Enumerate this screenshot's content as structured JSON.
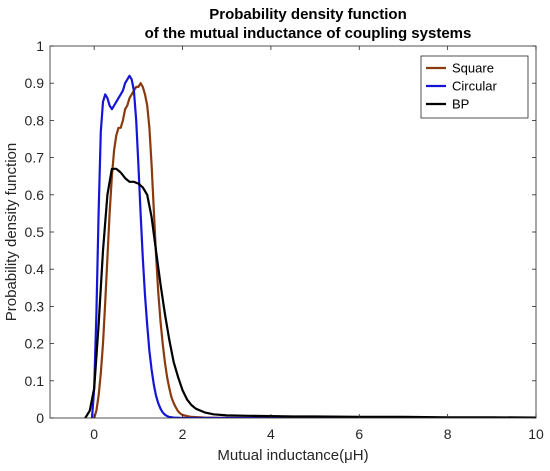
{
  "chart_data": {
    "type": "line",
    "title": [
      "Probability density function",
      "of the mutual inductance of coupling systems"
    ],
    "xlabel": "Mutual inductance(μH)",
    "ylabel": "Probability density function",
    "xlim": [
      -1,
      10
    ],
    "ylim": [
      0,
      1
    ],
    "xticks": [
      0,
      2,
      4,
      6,
      8,
      10
    ],
    "xtick_labels": [
      "0",
      "2",
      "4",
      "6",
      "8",
      "10"
    ],
    "yticks": [
      0,
      0.1,
      0.2,
      0.3,
      0.4,
      0.5,
      0.6,
      0.7,
      0.8,
      0.9,
      1
    ],
    "ytick_labels": [
      "0",
      "0.1",
      "0.2",
      "0.3",
      "0.4",
      "0.5",
      "0.6",
      "0.7",
      "0.8",
      "0.9",
      "1"
    ],
    "grid": false,
    "legend_position": "top-right",
    "series": [
      {
        "name": "Square",
        "color": "#8B3A0F",
        "x": [
          0.0,
          0.05,
          0.1,
          0.15,
          0.2,
          0.25,
          0.3,
          0.35,
          0.4,
          0.45,
          0.5,
          0.55,
          0.6,
          0.65,
          0.7,
          0.75,
          0.8,
          0.85,
          0.9,
          0.95,
          1.0,
          1.05,
          1.1,
          1.15,
          1.2,
          1.25,
          1.3,
          1.35,
          1.4,
          1.45,
          1.5,
          1.55,
          1.6,
          1.65,
          1.7,
          1.75,
          1.8,
          1.85,
          1.9,
          1.95,
          2.0,
          2.1,
          2.2,
          2.5,
          3.0,
          4.0,
          6.0,
          8.0,
          10.0
        ],
        "y": [
          0.0,
          0.02,
          0.06,
          0.12,
          0.2,
          0.31,
          0.43,
          0.55,
          0.65,
          0.72,
          0.76,
          0.78,
          0.78,
          0.8,
          0.83,
          0.84,
          0.86,
          0.87,
          0.88,
          0.89,
          0.89,
          0.9,
          0.89,
          0.87,
          0.84,
          0.78,
          0.68,
          0.56,
          0.44,
          0.34,
          0.26,
          0.2,
          0.15,
          0.11,
          0.08,
          0.055,
          0.04,
          0.028,
          0.018,
          0.012,
          0.008,
          0.005,
          0.003,
          0.001,
          0.0,
          0.0,
          0.0,
          0.0,
          0.0
        ]
      },
      {
        "name": "Circular",
        "color": "#1515D8",
        "x": [
          -0.05,
          0.0,
          0.05,
          0.1,
          0.15,
          0.2,
          0.25,
          0.3,
          0.35,
          0.4,
          0.45,
          0.5,
          0.55,
          0.6,
          0.65,
          0.7,
          0.75,
          0.8,
          0.85,
          0.9,
          0.95,
          1.0,
          1.05,
          1.1,
          1.15,
          1.2,
          1.25,
          1.3,
          1.35,
          1.4,
          1.45,
          1.5,
          1.55,
          1.6,
          1.65,
          1.7,
          1.8,
          2.0,
          2.5,
          3.0,
          4.0,
          6.0,
          8.0,
          10.0
        ],
        "y": [
          0.0,
          0.08,
          0.28,
          0.55,
          0.77,
          0.85,
          0.87,
          0.86,
          0.84,
          0.83,
          0.84,
          0.85,
          0.86,
          0.87,
          0.88,
          0.9,
          0.91,
          0.92,
          0.91,
          0.88,
          0.8,
          0.68,
          0.55,
          0.43,
          0.33,
          0.25,
          0.18,
          0.13,
          0.09,
          0.06,
          0.04,
          0.025,
          0.015,
          0.009,
          0.005,
          0.003,
          0.001,
          0.0,
          0.0,
          0.0,
          0.0,
          0.0,
          0.0,
          0.0
        ]
      },
      {
        "name": "BP",
        "color": "#000000",
        "x": [
          -0.2,
          -0.1,
          0.0,
          0.1,
          0.2,
          0.3,
          0.4,
          0.5,
          0.6,
          0.7,
          0.8,
          0.9,
          1.0,
          1.1,
          1.2,
          1.3,
          1.4,
          1.5,
          1.6,
          1.7,
          1.8,
          1.9,
          2.0,
          2.1,
          2.2,
          2.3,
          2.5,
          2.7,
          3.0,
          3.5,
          4.0,
          4.5,
          5.0,
          6.0,
          7.0,
          8.0,
          9.0,
          10.0
        ],
        "y": [
          0.0,
          0.02,
          0.08,
          0.25,
          0.45,
          0.6,
          0.67,
          0.67,
          0.66,
          0.645,
          0.635,
          0.635,
          0.63,
          0.62,
          0.6,
          0.54,
          0.45,
          0.36,
          0.28,
          0.21,
          0.15,
          0.11,
          0.075,
          0.05,
          0.035,
          0.025,
          0.015,
          0.01,
          0.007,
          0.006,
          0.005,
          0.004,
          0.004,
          0.003,
          0.003,
          0.002,
          0.002,
          0.001
        ]
      }
    ]
  }
}
